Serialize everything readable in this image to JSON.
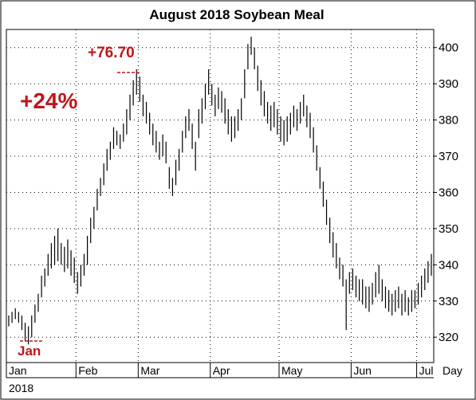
{
  "chart_data": {
    "type": "bar",
    "subtype": "ohlc-range",
    "title": "August 2018 Soybean Meal",
    "xlabel": "",
    "ylabel": "",
    "x_unit_label": "Day",
    "year_label": "2018",
    "ylim": [
      313,
      405
    ],
    "yticks": [
      320,
      330,
      340,
      350,
      360,
      370,
      380,
      390,
      400
    ],
    "grid": true,
    "months": [
      {
        "label": "Jan",
        "day": 0
      },
      {
        "label": "Feb",
        "day": 21
      },
      {
        "label": "Mar",
        "day": 40
      },
      {
        "label": "Apr",
        "day": 62
      },
      {
        "label": "May",
        "day": 83
      },
      {
        "label": "Jun",
        "day": 105
      },
      {
        "label": "Jul",
        "day": 125
      },
      {
        "label": "",
        "day": 146
      }
    ],
    "series": [
      {
        "bars": [
          [
            0,
            323,
            326
          ],
          [
            1,
            324,
            327
          ],
          [
            2,
            325,
            328
          ],
          [
            3,
            324,
            327
          ],
          [
            4,
            322,
            326
          ],
          [
            5,
            319,
            324
          ],
          [
            6,
            318,
            323
          ],
          [
            7,
            320,
            326
          ],
          [
            8,
            324,
            329
          ],
          [
            9,
            327,
            332
          ],
          [
            10,
            331,
            337
          ],
          [
            11,
            334,
            339
          ],
          [
            12,
            337,
            343
          ],
          [
            13,
            339,
            346
          ],
          [
            14,
            340,
            348
          ],
          [
            15,
            341,
            350
          ],
          [
            16,
            340,
            346
          ],
          [
            17,
            338,
            345
          ],
          [
            18,
            339,
            347
          ],
          [
            19,
            337,
            344
          ],
          [
            20,
            335,
            342
          ],
          [
            21,
            332,
            338
          ],
          [
            22,
            334,
            340
          ],
          [
            23,
            337,
            343
          ],
          [
            24,
            340,
            348
          ],
          [
            25,
            346,
            353
          ],
          [
            26,
            350,
            356
          ],
          [
            27,
            355,
            361
          ],
          [
            28,
            359,
            364
          ],
          [
            29,
            362,
            368
          ],
          [
            30,
            366,
            372
          ],
          [
            31,
            369,
            374
          ],
          [
            32,
            372,
            378
          ],
          [
            33,
            373,
            377
          ],
          [
            34,
            372,
            376
          ],
          [
            35,
            374,
            379
          ],
          [
            36,
            376,
            383
          ],
          [
            37,
            380,
            387
          ],
          [
            38,
            384,
            391
          ],
          [
            39,
            387,
            394
          ],
          [
            40,
            385,
            392
          ],
          [
            41,
            381,
            387
          ],
          [
            42,
            379,
            385
          ],
          [
            43,
            376,
            382
          ],
          [
            44,
            373,
            379
          ],
          [
            45,
            371,
            377
          ],
          [
            46,
            369,
            374
          ],
          [
            47,
            370,
            376
          ],
          [
            48,
            368,
            374
          ],
          [
            49,
            361,
            367
          ],
          [
            50,
            359,
            364
          ],
          [
            51,
            362,
            369
          ],
          [
            52,
            366,
            372
          ],
          [
            53,
            371,
            377
          ],
          [
            54,
            375,
            381
          ],
          [
            55,
            377,
            383
          ],
          [
            56,
            372,
            379
          ],
          [
            57,
            366,
            374
          ],
          [
            58,
            375,
            383
          ],
          [
            59,
            379,
            386
          ],
          [
            60,
            383,
            390
          ],
          [
            61,
            387,
            394
          ],
          [
            62,
            384,
            390
          ],
          [
            63,
            381,
            387
          ],
          [
            64,
            383,
            389
          ],
          [
            65,
            382,
            388
          ],
          [
            66,
            379,
            386
          ],
          [
            67,
            376,
            383
          ],
          [
            68,
            374,
            381
          ],
          [
            69,
            375,
            381
          ],
          [
            70,
            377,
            383
          ],
          [
            71,
            380,
            386
          ],
          [
            72,
            386,
            394
          ],
          [
            73,
            394,
            401
          ],
          [
            74,
            398,
            403
          ],
          [
            75,
            394,
            400
          ],
          [
            76,
            388,
            395
          ],
          [
            77,
            384,
            391
          ],
          [
            78,
            381,
            388
          ],
          [
            79,
            379,
            385
          ],
          [
            80,
            377,
            384
          ],
          [
            81,
            378,
            385
          ],
          [
            82,
            376,
            383
          ],
          [
            83,
            374,
            381
          ],
          [
            84,
            373,
            380
          ],
          [
            85,
            374,
            381
          ],
          [
            86,
            376,
            382
          ],
          [
            87,
            378,
            384
          ],
          [
            88,
            377,
            383
          ],
          [
            89,
            379,
            385
          ],
          [
            90,
            381,
            387
          ],
          [
            91,
            378,
            384
          ],
          [
            92,
            375,
            382
          ],
          [
            93,
            371,
            378
          ],
          [
            94,
            366,
            373
          ],
          [
            95,
            361,
            367
          ],
          [
            96,
            356,
            363
          ],
          [
            97,
            351,
            358
          ],
          [
            98,
            346,
            353
          ],
          [
            99,
            342,
            349
          ],
          [
            100,
            339,
            346
          ],
          [
            101,
            336,
            342
          ],
          [
            102,
            334,
            340
          ],
          [
            103,
            322,
            336
          ],
          [
            104,
            332,
            338
          ],
          [
            105,
            333,
            339
          ],
          [
            106,
            331,
            337
          ],
          [
            107,
            330,
            336
          ],
          [
            108,
            329,
            336
          ],
          [
            109,
            328,
            334
          ],
          [
            110,
            327,
            334
          ],
          [
            111,
            329,
            335
          ],
          [
            112,
            331,
            338
          ],
          [
            113,
            332,
            340
          ],
          [
            114,
            330,
            336
          ],
          [
            115,
            328,
            334
          ],
          [
            116,
            327,
            333
          ],
          [
            117,
            326,
            332
          ],
          [
            118,
            327,
            333
          ],
          [
            119,
            328,
            334
          ],
          [
            120,
            326,
            332
          ],
          [
            121,
            327,
            333
          ],
          [
            122,
            326,
            331
          ],
          [
            123,
            327,
            333
          ],
          [
            124,
            328,
            333
          ],
          [
            125,
            329,
            335
          ],
          [
            126,
            331,
            337
          ],
          [
            127,
            333,
            339
          ],
          [
            128,
            335,
            341
          ],
          [
            129,
            337,
            343
          ]
        ]
      }
    ],
    "annotations": [
      {
        "text": "+76.70",
        "color": "#c0161b"
      },
      {
        "text": "+24%",
        "color": "#c0161b"
      },
      {
        "text": "Jan",
        "color": "#c0161b"
      }
    ],
    "colors": {
      "bars": "#000000",
      "grid": "#000000",
      "annotation": "#c0161b"
    }
  }
}
